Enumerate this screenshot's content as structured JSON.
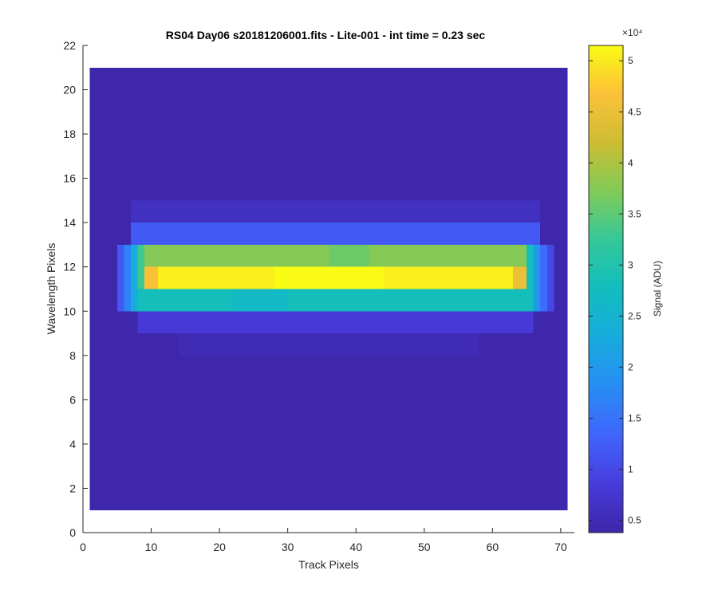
{
  "chart_data": {
    "type": "heatmap",
    "title": "RS04 Day06  s20181206001.fits - Lite-001 - int time = 0.23 sec",
    "xlabel": "Track Pixels",
    "ylabel": "Wavelength Pixels",
    "xlim": [
      0,
      72
    ],
    "ylim": [
      0,
      22
    ],
    "xticks": [
      "0",
      "10",
      "20",
      "30",
      "40",
      "50",
      "60",
      "70"
    ],
    "yticks": [
      "0",
      "2",
      "4",
      "6",
      "8",
      "10",
      "12",
      "14",
      "16",
      "18",
      "20",
      "22"
    ],
    "image_extent": {
      "x": [
        1,
        71
      ],
      "y": [
        1,
        21
      ]
    },
    "colorbar": {
      "label": "Signal (ADU)",
      "exponent": "×10⁴",
      "clim": [
        3800,
        51500
      ],
      "ticks": [
        0.5,
        1,
        1.5,
        2,
        2.5,
        3,
        3.5,
        4,
        4.5,
        5
      ],
      "tick_labels": [
        "0.5",
        "1",
        "1.5",
        "2",
        "2.5",
        "3",
        "3.5",
        "4",
        "4.5",
        "5"
      ],
      "tick_multiplier": 10000,
      "colormap": "parula"
    },
    "background_value": 4000,
    "rows": [
      {
        "y": [
          8,
          9
        ],
        "x": [
          14,
          58
        ],
        "value": 4900
      },
      {
        "y": [
          9,
          10
        ],
        "x": [
          8,
          66
        ],
        "value": 8000
      },
      {
        "y": [
          10,
          11
        ],
        "x": [
          8,
          66
        ],
        "value": 28000
      },
      {
        "y": [
          11,
          12
        ],
        "x": [
          9,
          65
        ],
        "value": 50500
      },
      {
        "y": [
          12,
          13
        ],
        "x": [
          9,
          65
        ],
        "value": 37500
      },
      {
        "y": [
          13,
          14
        ],
        "x": [
          7,
          67
        ],
        "value": 12000
      },
      {
        "y": [
          14,
          15
        ],
        "x": [
          7,
          67
        ],
        "value": 6000
      }
    ],
    "row_variation": [
      {
        "x": [
          9,
          11
        ],
        "y": [
          11,
          12
        ],
        "value": 46500
      },
      {
        "x": [
          63,
          65
        ],
        "y": [
          11,
          12
        ],
        "value": 45000
      },
      {
        "x": [
          28,
          44
        ],
        "y": [
          11,
          12
        ],
        "value": 51500
      },
      {
        "x": [
          36,
          42
        ],
        "y": [
          12,
          13
        ],
        "value": 36000
      },
      {
        "x": [
          22,
          30
        ],
        "y": [
          10,
          11
        ],
        "value": 26500
      }
    ],
    "edge_columns": [
      {
        "x": [
          5,
          6
        ],
        "y": [
          10,
          13
        ],
        "value": 12000
      },
      {
        "x": [
          6,
          7
        ],
        "y": [
          10,
          13
        ],
        "value": 17000
      },
      {
        "x": [
          7,
          8
        ],
        "y": [
          10,
          13
        ],
        "value": 23000
      },
      {
        "x": [
          8,
          9
        ],
        "y": [
          11,
          13
        ],
        "value": 33000
      },
      {
        "x": [
          65,
          66
        ],
        "y": [
          10,
          13
        ],
        "value": 28000
      },
      {
        "x": [
          66,
          67
        ],
        "y": [
          10,
          13
        ],
        "value": 20000
      },
      {
        "x": [
          67,
          68
        ],
        "y": [
          10,
          13
        ],
        "value": 14000
      },
      {
        "x": [
          68,
          69
        ],
        "y": [
          10,
          13
        ],
        "value": 10000
      }
    ]
  }
}
